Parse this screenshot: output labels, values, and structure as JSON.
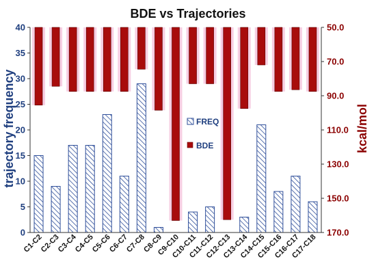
{
  "chart_data": {
    "type": "bar",
    "title": "BDE vs Trajectories",
    "categories": [
      "C1-C2",
      "C2-C3",
      "C3-C4",
      "C4-C5",
      "C5-C6",
      "C6-C7",
      "C7-C8",
      "C8-C9",
      "C9-C10",
      "C10-C11",
      "C11-C12",
      "C12-C13",
      "C13-C14",
      "C14-C15",
      "C15-C16",
      "C16-C17",
      "C17-C18"
    ],
    "series": [
      {
        "name": "FREQ",
        "axis": "left",
        "pattern": "diagonal-hatch",
        "color": "#2f4f9a",
        "values": [
          15,
          9,
          17,
          17,
          23,
          11,
          29,
          1,
          0,
          4,
          5,
          0,
          3,
          21,
          8,
          11,
          6
        ]
      },
      {
        "name": "BDE",
        "axis": "right",
        "inverted": true,
        "color": "#a80c0c",
        "values": [
          95.5,
          84.5,
          87.5,
          87.5,
          87.5,
          87.5,
          74.5,
          98.5,
          163.0,
          83.0,
          83.0,
          162.5,
          97.5,
          72.0,
          87.5,
          86.5,
          87.5
        ]
      }
    ],
    "ylabel_left": "trajectory frequency",
    "ylabel_right": "kcal/mol",
    "ylim_left": [
      0,
      40
    ],
    "yticks_left": [
      "0",
      "5",
      "10",
      "15",
      "20",
      "25",
      "30",
      "35",
      "40"
    ],
    "ylim_right": [
      50,
      170
    ],
    "yticks_right": [
      "50.0",
      "70.0",
      "90.0",
      "110.0",
      "130.0",
      "150.0",
      "170.0"
    ],
    "legend_position": "center",
    "grid": false,
    "colors": {
      "left_axis": "#1f3f7f",
      "right_axis": "#8b0000",
      "bar_pink_glow": "#f3bbd7"
    }
  }
}
